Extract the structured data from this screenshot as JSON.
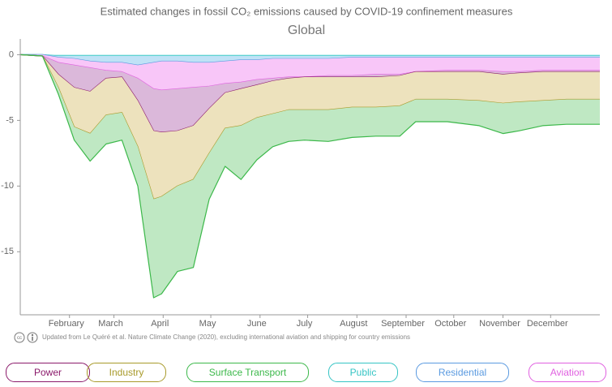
{
  "chart_data": {
    "type": "stacked-area",
    "title": "Estimated changes in fossil CO₂ emissions caused by COVID-19 confinement measures",
    "subtitle": "Global",
    "note": "Updated from Le Quéré et al. Nature Climate Change (2020), excluding international aviation and shipping for country emissions",
    "x": [
      1,
      15,
      25,
      35,
      45,
      55,
      65,
      75,
      85,
      90,
      100,
      110,
      120,
      130,
      140,
      150,
      160,
      170,
      180,
      195,
      210,
      225,
      240,
      250,
      270,
      290,
      305,
      315,
      330,
      345,
      366
    ],
    "xlim": [
      1,
      366
    ],
    "xticks": [
      {
        "value": 32,
        "label": "February"
      },
      {
        "value": 60,
        "label": "March"
      },
      {
        "value": 91,
        "label": "April"
      },
      {
        "value": 121,
        "label": "May"
      },
      {
        "value": 152,
        "label": "June"
      },
      {
        "value": 182,
        "label": "July"
      },
      {
        "value": 213,
        "label": "August"
      },
      {
        "value": 244,
        "label": "September"
      },
      {
        "value": 274,
        "label": "October"
      },
      {
        "value": 305,
        "label": "November"
      },
      {
        "value": 335,
        "label": "December"
      }
    ],
    "ylim": [
      -19.8,
      1.2
    ],
    "yticks": [
      0,
      -5,
      -10,
      -15
    ],
    "series": [
      {
        "name": "Power",
        "color": "#8b1a6b",
        "fill": "#dbb8da",
        "values": [
          0,
          0,
          -0.9,
          -1.7,
          -1.8,
          -0.6,
          -0.4,
          -1.7,
          -3.2,
          -3.2,
          -3.2,
          -2.9,
          -1.7,
          -0.7,
          -0.5,
          -0.4,
          -0.2,
          -0.1,
          0,
          -0.1,
          -0.1,
          -0.2,
          -0.1,
          0,
          -0.1,
          -0.1,
          -0.2,
          -0.1,
          -0.1,
          -0.1,
          -0.1
        ]
      },
      {
        "name": "Industry",
        "color": "#a89a2a",
        "fill": "#ede2bd",
        "values": [
          0,
          0,
          -1.0,
          -3.0,
          -3.2,
          -2.8,
          -2.7,
          -3.5,
          -5.2,
          -4.9,
          -4.2,
          -4.1,
          -3.4,
          -2.7,
          -2.8,
          -2.5,
          -2.5,
          -2.4,
          -2.5,
          -2.5,
          -2.3,
          -2.3,
          -2.3,
          -2.1,
          -2.1,
          -2.2,
          -2.2,
          -2.2,
          -2.2,
          -2.1,
          -2.1
        ]
      },
      {
        "name": "Surface Transport",
        "color": "#3cb84a",
        "fill": "#bfe8c3",
        "values": [
          0,
          0,
          -0.5,
          -1.0,
          -2.1,
          -2.2,
          -2.1,
          -3.0,
          -7.5,
          -7.4,
          -6.5,
          -6.7,
          -3.5,
          -2.9,
          -4.1,
          -3.2,
          -2.5,
          -2.4,
          -2.3,
          -2.4,
          -2.3,
          -2.2,
          -2.3,
          -1.7,
          -1.7,
          -1.9,
          -2.3,
          -2.2,
          -1.9,
          -1.9,
          -1.9
        ]
      },
      {
        "name": "Public",
        "color": "#35c4c4",
        "fill": "#a8e8e8",
        "values": [
          0,
          0,
          -0.1,
          -0.1,
          -0.1,
          -0.1,
          -0.1,
          -0.1,
          -0.1,
          -0.1,
          -0.1,
          -0.1,
          -0.1,
          -0.1,
          -0.1,
          -0.1,
          -0.1,
          -0.1,
          -0.1,
          -0.1,
          -0.1,
          -0.1,
          -0.1,
          -0.1,
          -0.1,
          -0.1,
          -0.1,
          -0.1,
          -0.1,
          -0.1,
          -0.1
        ]
      },
      {
        "name": "Residential",
        "color": "#5a9ae0",
        "fill": "#bfe2f6",
        "values": [
          0,
          0,
          -0.1,
          -0.2,
          -0.4,
          -0.5,
          -0.5,
          -0.7,
          -0.5,
          -0.4,
          -0.4,
          -0.5,
          -0.5,
          -0.4,
          -0.3,
          -0.3,
          -0.2,
          -0.2,
          -0.2,
          -0.2,
          -0.1,
          -0.1,
          -0.1,
          -0.1,
          -0.1,
          -0.1,
          -0.1,
          -0.1,
          -0.1,
          -0.1,
          -0.1
        ]
      },
      {
        "name": "Aviation",
        "color": "#e060e0",
        "fill": "#f8c6f8",
        "values": [
          0,
          -0.1,
          -0.4,
          -0.5,
          -0.5,
          -0.6,
          -0.7,
          -1.0,
          -2.0,
          -2.2,
          -2.1,
          -1.9,
          -1.8,
          -1.7,
          -1.7,
          -1.5,
          -1.5,
          -1.4,
          -1.4,
          -1.3,
          -1.4,
          -1.3,
          -1.3,
          -1.1,
          -1.0,
          -1.0,
          -1.1,
          -1.1,
          -1.0,
          -1.0,
          -1.0
        ]
      }
    ]
  }
}
